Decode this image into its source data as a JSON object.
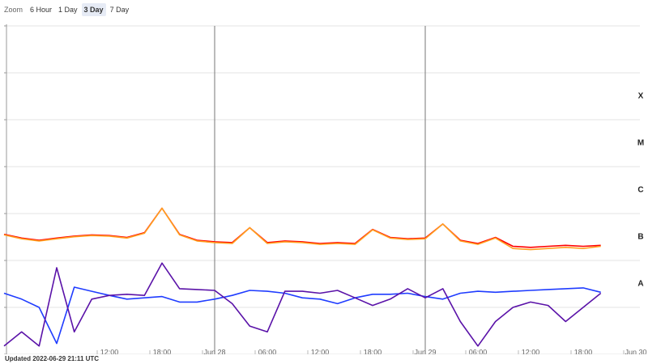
{
  "ui": {
    "zoom_label": "Zoom",
    "zoom_buttons": [
      "6 Hour",
      "1 Day",
      "3 Day",
      "7 Day"
    ],
    "selected_button": 2,
    "updated": "Updated 2022-06-29 21:11 UTC"
  },
  "chart_data": {
    "type": "line",
    "log_scale": true,
    "grid": true,
    "x": [
      "Jun 27 00:00",
      "Jun 27 02:00",
      "Jun 27 04:00",
      "Jun 27 06:00",
      "Jun 27 08:00",
      "Jun 27 10:00",
      "Jun 27 12:00",
      "Jun 27 14:00",
      "Jun 27 16:00",
      "Jun 27 18:00",
      "Jun 27 20:00",
      "Jun 27 22:00",
      "Jun 28 00:00",
      "Jun 28 02:00",
      "Jun 28 04:00",
      "Jun 28 06:00",
      "Jun 28 08:00",
      "Jun 28 10:00",
      "Jun 28 12:00",
      "Jun 28 14:00",
      "Jun 28 16:00",
      "Jun 28 18:00",
      "Jun 28 20:00",
      "Jun 28 22:00",
      "Jun 29 00:00",
      "Jun 29 02:00",
      "Jun 29 04:00",
      "Jun 29 06:00",
      "Jun 29 08:00",
      "Jun 29 10:00",
      "Jun 29 12:00",
      "Jun 29 14:00",
      "Jun 29 16:00",
      "Jun 29 18:00",
      "Jun 29 20:00"
    ],
    "xlim": [
      "Jun 27 00:00",
      "Jun 30 00:00"
    ],
    "xticks": [
      {
        "value": "Jun 27 12:00",
        "label": "12:00"
      },
      {
        "value": "Jun 27 18:00",
        "label": "18:00"
      },
      {
        "value": "Jun 28 00:00",
        "label": "Jun 28"
      },
      {
        "value": "Jun 28 06:00",
        "label": "06:00"
      },
      {
        "value": "Jun 28 12:00",
        "label": "12:00"
      },
      {
        "value": "Jun 28 18:00",
        "label": "18:00"
      },
      {
        "value": "Jun 29 00:00",
        "label": "Jun 29"
      },
      {
        "value": "Jun 29 06:00",
        "label": "06:00"
      },
      {
        "value": "Jun 29 12:00",
        "label": "12:00"
      },
      {
        "value": "Jun 29 18:00",
        "label": "18:00"
      },
      {
        "value": "Jun 30 00:00",
        "label": "Jun 30"
      }
    ],
    "ylim": [
      1e-09,
      0.01
    ],
    "yticks": [
      1e-09,
      1e-08,
      1e-07,
      1e-06,
      1e-05,
      0.0001,
      0.001,
      0.01
    ],
    "y2lim": [
      1e-09,
      0.01
    ],
    "y2ticks": [
      {
        "value": 3.16e-08,
        "label": "A"
      },
      {
        "value": 3.16e-07,
        "label": "B"
      },
      {
        "value": 3.16e-06,
        "label": "C"
      },
      {
        "value": 3.16e-05,
        "label": "M"
      },
      {
        "value": 0.000316,
        "label": "X"
      }
    ],
    "series": [
      {
        "color": "#ff0000",
        "values": [
          3.6e-07,
          3e-07,
          2.7e-07,
          3e-07,
          3.3e-07,
          3.5e-07,
          3.4e-07,
          3.1e-07,
          3.9e-07,
          1.3e-06,
          3.6e-07,
          2.7e-07,
          2.5e-07,
          2.4e-07,
          5e-07,
          2.4e-07,
          2.6e-07,
          2.5e-07,
          2.3e-07,
          2.4e-07,
          2.3e-07,
          4.6e-07,
          3.1e-07,
          2.9e-07,
          3e-07,
          6e-07,
          2.7e-07,
          2.3e-07,
          3.1e-07,
          2e-07,
          1.9e-07,
          2e-07,
          2.1e-07,
          2e-07,
          2.1e-07
        ]
      },
      {
        "color": "#ffa020",
        "values": [
          3.5e-07,
          2.9e-07,
          2.6e-07,
          2.9e-07,
          3.2e-07,
          3.4e-07,
          3.3e-07,
          3e-07,
          3.8e-07,
          1.3e-06,
          3.5e-07,
          2.6e-07,
          2.4e-07,
          2.3e-07,
          5e-07,
          2.3e-07,
          2.5e-07,
          2.4e-07,
          2.2e-07,
          2.3e-07,
          2.2e-07,
          4.5e-07,
          3e-07,
          2.8e-07,
          2.9e-07,
          6e-07,
          2.6e-07,
          2.2e-07,
          3e-07,
          1.8e-07,
          1.7e-07,
          1.8e-07,
          1.9e-07,
          1.8e-07,
          2e-07
        ]
      },
      {
        "color": "#1f3cff",
        "values": [
          2e-08,
          1.5e-08,
          1e-08,
          1.7e-09,
          2.7e-08,
          2.2e-08,
          1.8e-08,
          1.5e-08,
          1.6e-08,
          1.7e-08,
          1.3e-08,
          1.3e-08,
          1.5e-08,
          1.8e-08,
          2.3e-08,
          2.2e-08,
          2e-08,
          1.6e-08,
          1.5e-08,
          1.2e-08,
          1.6e-08,
          1.9e-08,
          1.9e-08,
          2e-08,
          1.7e-08,
          1.5e-08,
          2e-08,
          2.2e-08,
          2.1e-08,
          2.2e-08,
          2.3e-08,
          2.4e-08,
          2.5e-08,
          2.6e-08,
          2.1e-08
        ]
      },
      {
        "color": "#5a12a8",
        "values": [
          1.5e-09,
          3e-09,
          1.5e-09,
          7e-08,
          3e-09,
          1.5e-08,
          1.8e-08,
          1.9e-08,
          1.8e-08,
          8.8e-08,
          2.5e-08,
          2.4e-08,
          2.3e-08,
          1.2e-08,
          4e-09,
          3e-09,
          2.2e-08,
          2.2e-08,
          2e-08,
          2.3e-08,
          1.6e-08,
          1.1e-08,
          1.5e-08,
          2.5e-08,
          1.6e-08,
          2.5e-08,
          5e-09,
          1.5e-09,
          5e-09,
          1e-08,
          1.3e-08,
          1.1e-08,
          5e-09,
          1e-08,
          2e-08
        ]
      }
    ]
  }
}
